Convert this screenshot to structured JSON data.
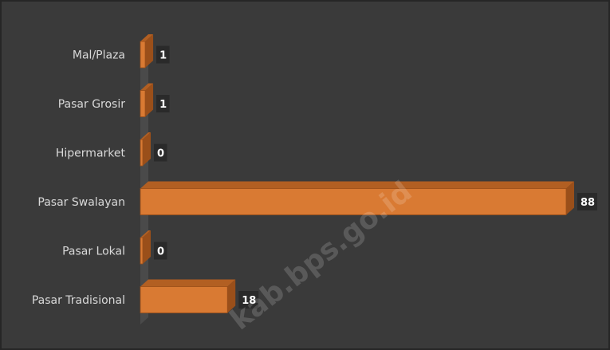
{
  "chart_data": {
    "type": "bar",
    "orientation": "horizontal",
    "three_d": true,
    "categories": [
      "Mal/Plaza",
      "Pasar Grosir",
      "Hipermarket",
      "Pasar Swalayan",
      "Pasar Lokal",
      "Pasar Tradisional"
    ],
    "values": [
      1,
      1,
      0,
      88,
      0,
      18
    ],
    "data_labels": [
      "1",
      "1",
      "0",
      "88",
      "0",
      "18"
    ],
    "xlim": [
      0,
      88
    ],
    "grid": false,
    "legend": "none",
    "colors": {
      "background": "#3a3a3a",
      "border": "#262626",
      "bar_front": "#d97a33",
      "bar_top": "#b25f22",
      "bar_side": "#9a4f1a",
      "wall": "#4a4a4a",
      "label_text": "#d9d9d9",
      "value_text": "#ffffff"
    }
  },
  "watermark": "kab.bps.go.id"
}
